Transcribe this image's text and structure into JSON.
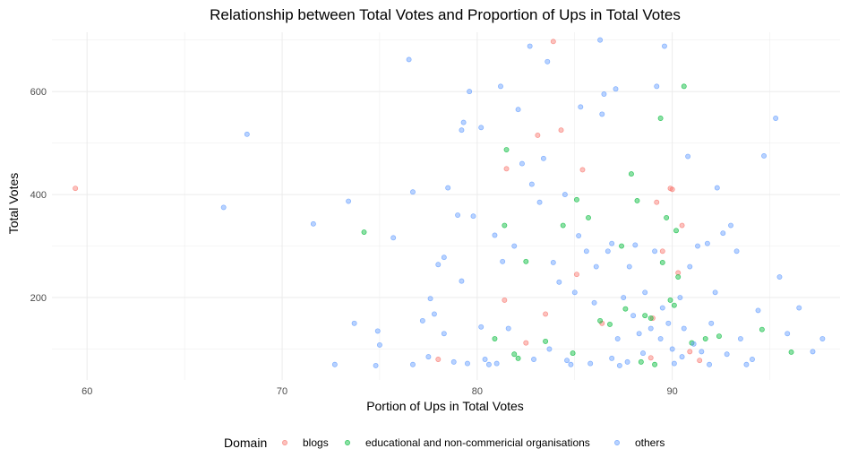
{
  "chart_data": {
    "type": "scatter",
    "title": "Relationship between Total Votes and Proportion of Ups in Total Votes",
    "xlabel": "Portion of Ups in Total Votes",
    "ylabel": "Total Votes",
    "xlim": [
      58.2,
      98.6
    ],
    "ylim": [
      40,
      715
    ],
    "x_ticks": [
      60,
      70,
      80,
      90
    ],
    "y_ticks": [
      200,
      400,
      600
    ],
    "grid": true,
    "legend": {
      "title": "Domain",
      "placement": "bottom"
    },
    "series": [
      {
        "name": "blogs",
        "color": "#F8766D",
        "points": [
          [
            59.4,
            412
          ],
          [
            78.0,
            80
          ],
          [
            81.4,
            195
          ],
          [
            81.5,
            450
          ],
          [
            82.5,
            112
          ],
          [
            83.1,
            515
          ],
          [
            83.5,
            168
          ],
          [
            83.9,
            697
          ],
          [
            84.3,
            525
          ],
          [
            85.1,
            245
          ],
          [
            85.4,
            448
          ],
          [
            86.4,
            150
          ],
          [
            88.9,
            83
          ],
          [
            89.0,
            160
          ],
          [
            89.2,
            385
          ],
          [
            89.5,
            290
          ],
          [
            89.9,
            412
          ],
          [
            90.0,
            410
          ],
          [
            90.3,
            248
          ],
          [
            90.5,
            340
          ],
          [
            90.9,
            95
          ],
          [
            91.4,
            78
          ]
        ]
      },
      {
        "name": "educational and non-commericial organisations",
        "color": "#00BA38",
        "points": [
          [
            74.2,
            327
          ],
          [
            80.9,
            120
          ],
          [
            81.4,
            340
          ],
          [
            81.5,
            487
          ],
          [
            81.9,
            90
          ],
          [
            82.1,
            82
          ],
          [
            82.5,
            270
          ],
          [
            83.5,
            115
          ],
          [
            84.4,
            340
          ],
          [
            84.9,
            92
          ],
          [
            85.1,
            390
          ],
          [
            85.7,
            355
          ],
          [
            86.3,
            155
          ],
          [
            86.8,
            148
          ],
          [
            87.4,
            300
          ],
          [
            87.6,
            178
          ],
          [
            87.9,
            440
          ],
          [
            88.2,
            388
          ],
          [
            88.4,
            75
          ],
          [
            88.6,
            165
          ],
          [
            88.9,
            160
          ],
          [
            89.1,
            70
          ],
          [
            89.4,
            548
          ],
          [
            89.5,
            268
          ],
          [
            89.7,
            355
          ],
          [
            89.9,
            195
          ],
          [
            90.1,
            185
          ],
          [
            90.2,
            330
          ],
          [
            90.3,
            240
          ],
          [
            90.6,
            610
          ],
          [
            91.0,
            112
          ],
          [
            91.7,
            120
          ],
          [
            92.4,
            125
          ],
          [
            94.6,
            138
          ],
          [
            96.1,
            94
          ]
        ]
      },
      {
        "name": "others",
        "color": "#619CFF",
        "points": [
          [
            67.0,
            375
          ],
          [
            68.2,
            517
          ],
          [
            71.6,
            343
          ],
          [
            72.7,
            70
          ],
          [
            73.4,
            387
          ],
          [
            73.7,
            150
          ],
          [
            74.8,
            68
          ],
          [
            74.9,
            135
          ],
          [
            75.0,
            108
          ],
          [
            75.7,
            316
          ],
          [
            76.5,
            662
          ],
          [
            76.7,
            405
          ],
          [
            76.7,
            70
          ],
          [
            77.2,
            155
          ],
          [
            77.5,
            85
          ],
          [
            77.6,
            198
          ],
          [
            77.8,
            168
          ],
          [
            78.0,
            264
          ],
          [
            78.3,
            130
          ],
          [
            78.3,
            278
          ],
          [
            78.5,
            413
          ],
          [
            78.8,
            75
          ],
          [
            79.0,
            360
          ],
          [
            79.2,
            232
          ],
          [
            79.2,
            525
          ],
          [
            79.3,
            540
          ],
          [
            79.5,
            72
          ],
          [
            79.6,
            600
          ],
          [
            79.8,
            358
          ],
          [
            80.2,
            530
          ],
          [
            80.2,
            143
          ],
          [
            80.4,
            80
          ],
          [
            80.9,
            321
          ],
          [
            81.0,
            72
          ],
          [
            81.2,
            610
          ],
          [
            81.3,
            270
          ],
          [
            81.6,
            140
          ],
          [
            81.9,
            300
          ],
          [
            82.1,
            565
          ],
          [
            82.3,
            460
          ],
          [
            82.7,
            688
          ],
          [
            82.8,
            420
          ],
          [
            83.2,
            385
          ],
          [
            83.4,
            470
          ],
          [
            83.6,
            658
          ],
          [
            83.7,
            100
          ],
          [
            83.9,
            268
          ],
          [
            84.2,
            230
          ],
          [
            84.5,
            400
          ],
          [
            84.6,
            78
          ],
          [
            85.0,
            210
          ],
          [
            85.2,
            320
          ],
          [
            85.3,
            570
          ],
          [
            85.6,
            290
          ],
          [
            85.8,
            72
          ],
          [
            86.0,
            190
          ],
          [
            86.1,
            260
          ],
          [
            86.3,
            700
          ],
          [
            86.4,
            556
          ],
          [
            86.5,
            595
          ],
          [
            86.7,
            290
          ],
          [
            86.9,
            305
          ],
          [
            87.1,
            605
          ],
          [
            87.2,
            120
          ],
          [
            87.5,
            200
          ],
          [
            87.7,
            75
          ],
          [
            87.8,
            260
          ],
          [
            88.0,
            165
          ],
          [
            88.1,
            302
          ],
          [
            88.3,
            130
          ],
          [
            88.5,
            92
          ],
          [
            88.6,
            210
          ],
          [
            88.9,
            140
          ],
          [
            89.1,
            290
          ],
          [
            89.2,
            610
          ],
          [
            89.4,
            120
          ],
          [
            89.5,
            180
          ],
          [
            89.6,
            688
          ],
          [
            89.8,
            150
          ],
          [
            90.0,
            100
          ],
          [
            90.1,
            72
          ],
          [
            90.4,
            200
          ],
          [
            90.6,
            140
          ],
          [
            90.8,
            474
          ],
          [
            90.9,
            260
          ],
          [
            91.1,
            110
          ],
          [
            91.3,
            300
          ],
          [
            91.5,
            95
          ],
          [
            91.8,
            305
          ],
          [
            92.0,
            150
          ],
          [
            92.2,
            210
          ],
          [
            92.3,
            413
          ],
          [
            92.6,
            325
          ],
          [
            92.8,
            90
          ],
          [
            93.0,
            340
          ],
          [
            93.3,
            290
          ],
          [
            93.5,
            120
          ],
          [
            93.8,
            70
          ],
          [
            94.1,
            80
          ],
          [
            94.4,
            175
          ],
          [
            94.7,
            475
          ],
          [
            95.3,
            548
          ],
          [
            95.5,
            240
          ],
          [
            95.9,
            130
          ],
          [
            96.5,
            180
          ],
          [
            97.2,
            95
          ],
          [
            97.7,
            120
          ],
          [
            84.8,
            70
          ],
          [
            86.9,
            82
          ],
          [
            91.9,
            70
          ],
          [
            82.9,
            80
          ],
          [
            80.6,
            70
          ],
          [
            87.3,
            68
          ],
          [
            90.5,
            85
          ]
        ]
      }
    ]
  }
}
